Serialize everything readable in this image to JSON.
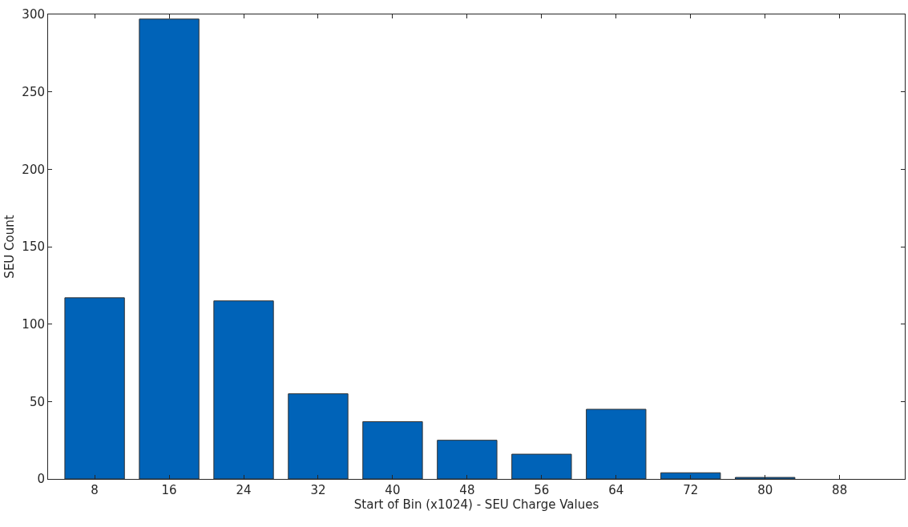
{
  "chart_data": {
    "type": "bar",
    "xlabel": "Start of Bin (x1024) - SEU Charge Values",
    "ylabel": "SEU Count",
    "x": [
      8,
      16,
      24,
      32,
      40,
      48,
      56,
      64,
      72,
      80,
      88
    ],
    "values": [
      117,
      297,
      115,
      55,
      37,
      25,
      16,
      45,
      4,
      1,
      0
    ],
    "color": "#0063b8",
    "xlim": [
      3,
      95
    ],
    "xticks": [
      8,
      16,
      24,
      32,
      40,
      48,
      56,
      64,
      72,
      80,
      88
    ],
    "ylim": [
      0,
      300
    ],
    "yticks": [
      0,
      50,
      100,
      150,
      200,
      250,
      300
    ]
  }
}
